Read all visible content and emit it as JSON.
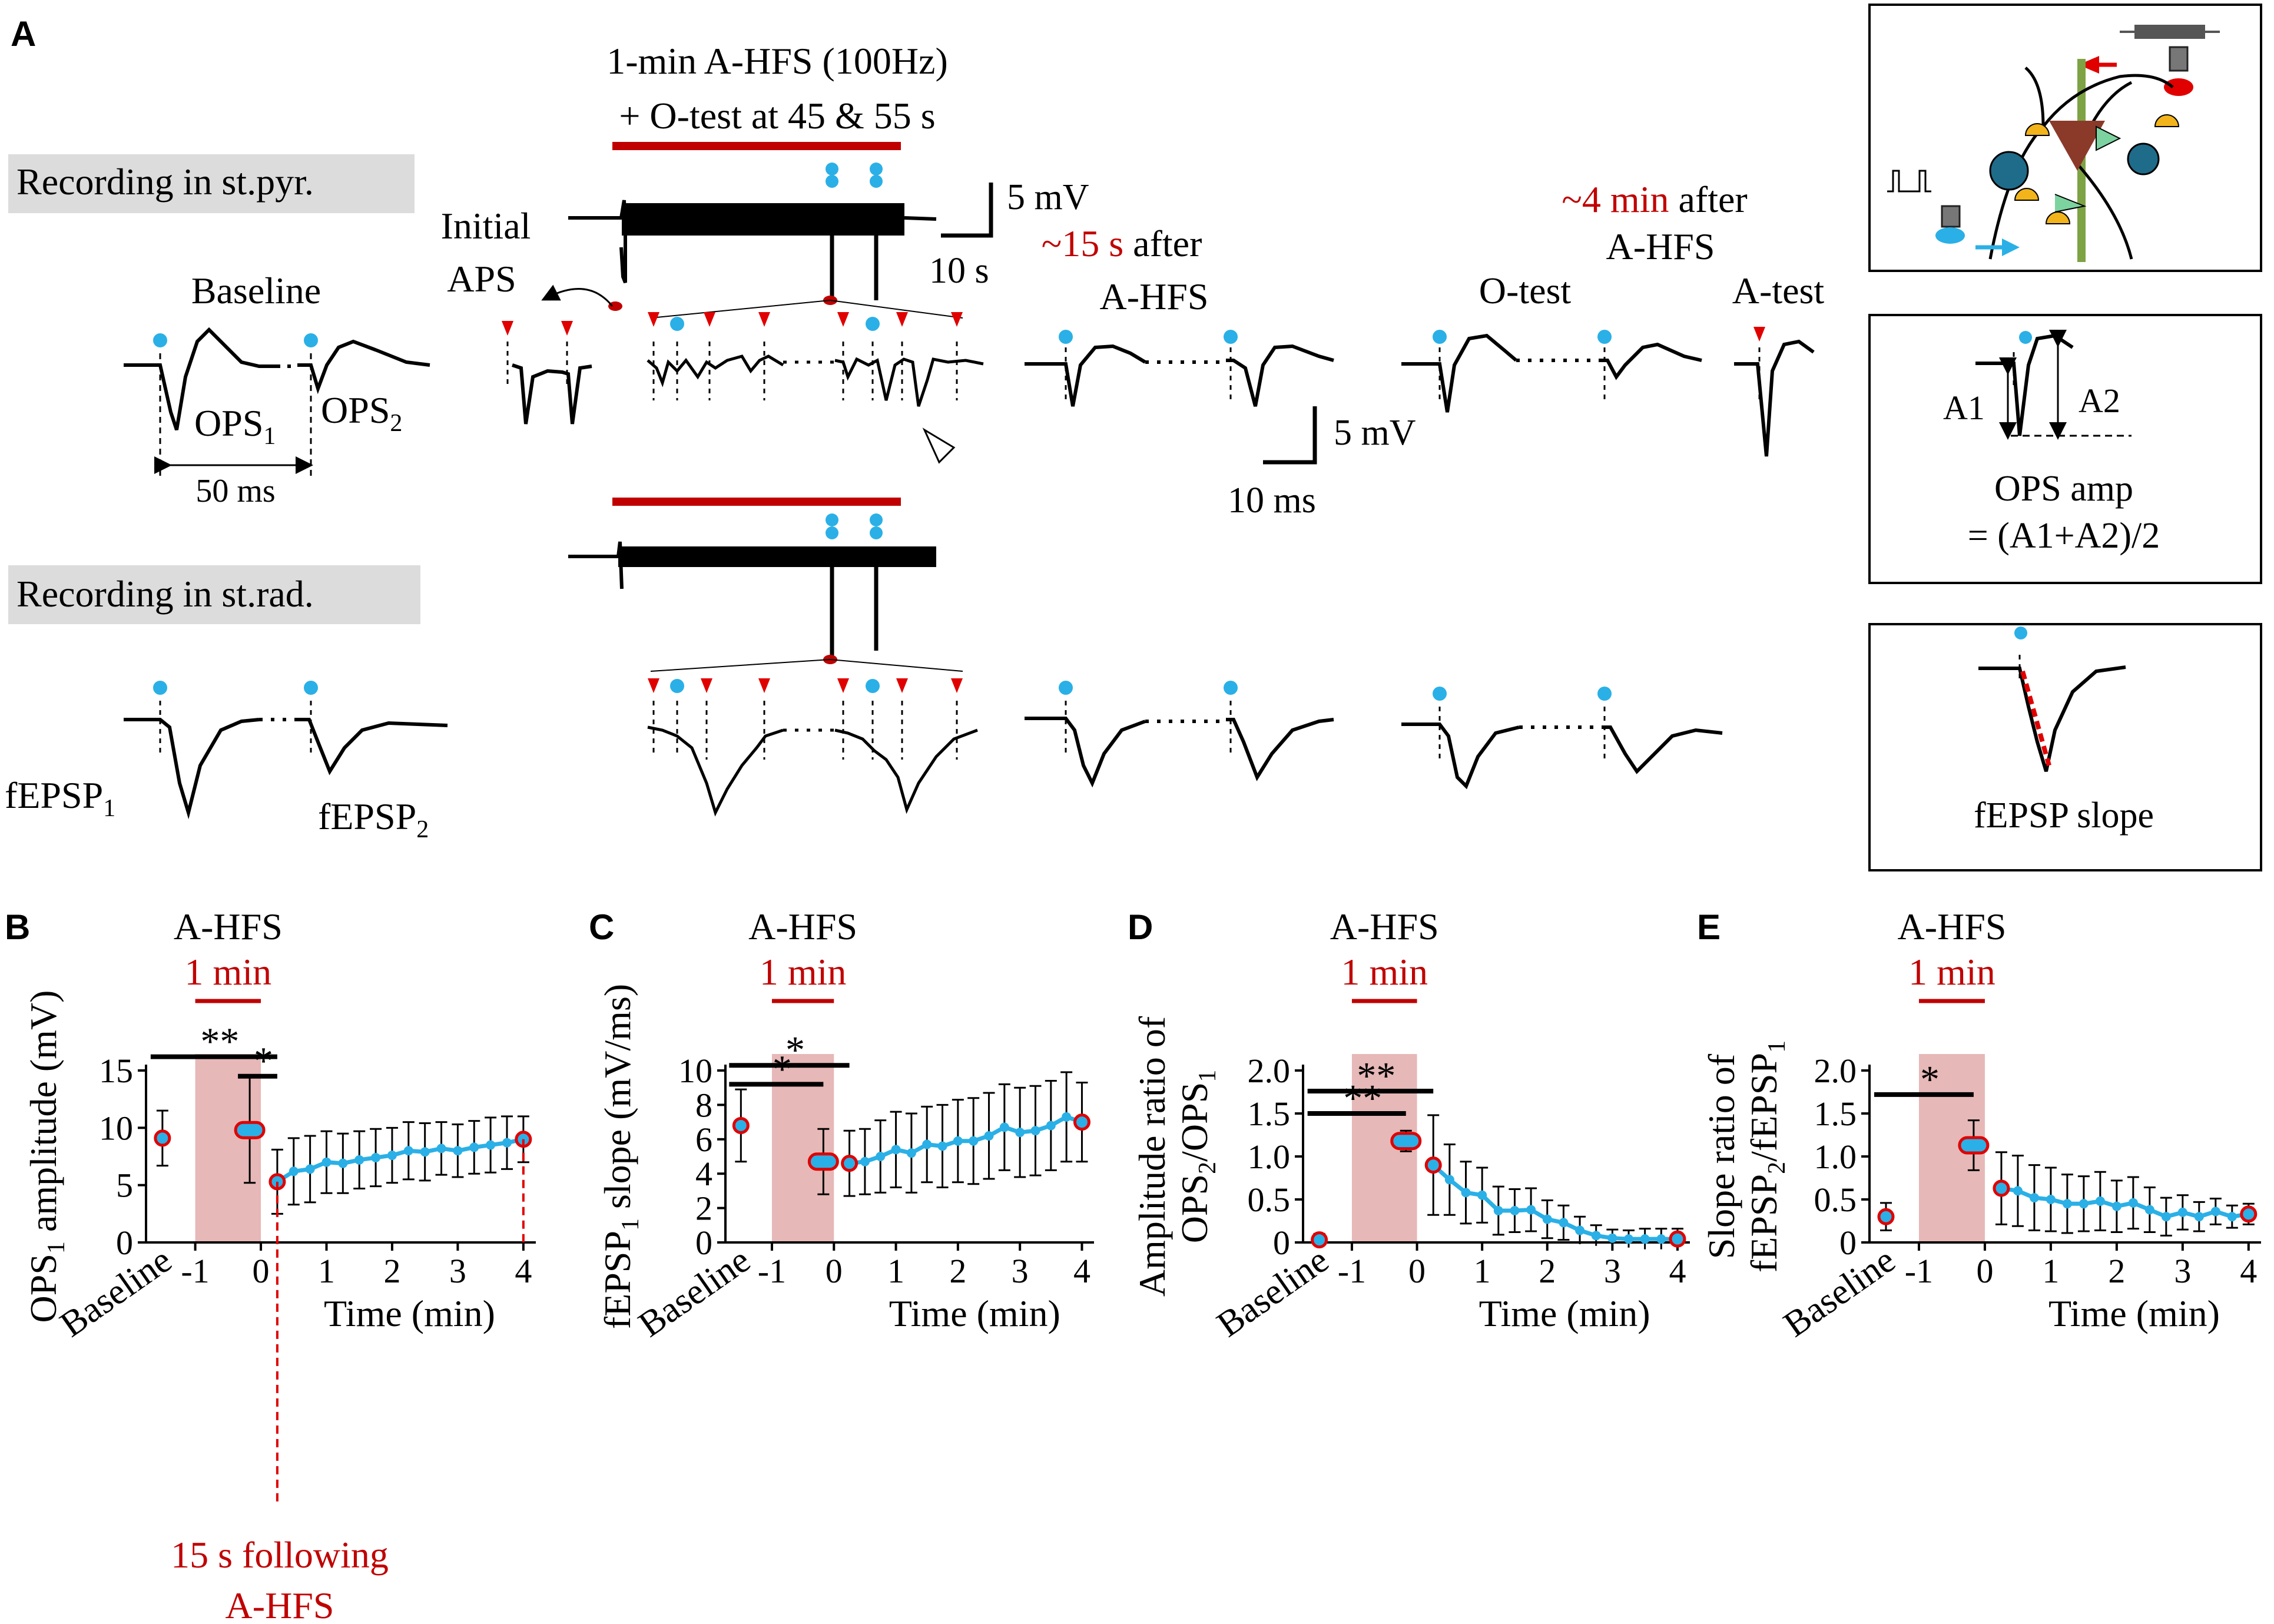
{
  "panel_labels": {
    "a": "A",
    "b": "B",
    "c": "C",
    "d": "D",
    "e": "E"
  },
  "panel_a": {
    "protocol_line1": "1-min A-HFS (100Hz)",
    "protocol_line2": "+ O-test at 45 & 55 s",
    "rec_pyr": "Recording in st.pyr.",
    "rec_rad": "Recording in st.rad.",
    "initial_aps": [
      "Initial",
      "APS"
    ],
    "baseline": "Baseline",
    "after15": {
      "red": "~15 s",
      "black": " after",
      "line2": "A-HFS"
    },
    "after4": {
      "red": "~4 min",
      "black": " after",
      "line2": "A-HFS"
    },
    "o_test": "O-test",
    "a_test": "A-test",
    "ops1_base": "OPS",
    "ops1_sub": "1",
    "ops2_base": "OPS",
    "ops2_sub": "2",
    "interval": "50 ms",
    "scale_slow_v": "5 mV",
    "scale_slow_t": "10 s",
    "scale_fast_v": "5 mV",
    "scale_fast_t": "10 ms",
    "fepsp1_base": "fEPSP",
    "fepsp1_sub": "1",
    "fepsp2_base": "fEPSP",
    "fepsp2_sub": "2"
  },
  "insets": {
    "ops_amp_line1": "OPS amp",
    "ops_amp_line2": "= (A1+A2)/2",
    "a1": "A1",
    "a2": "A2",
    "fepsp_slope": "fEPSP slope"
  },
  "colors": {
    "red": "#c00000",
    "marker_red": "#e00000",
    "blue": "#2ab0e6",
    "shade": "#e6b8b7",
    "black": "#000000"
  },
  "chart_data": [
    {
      "panel": "B",
      "type": "line",
      "title": "A-HFS",
      "subtitle": "1 min",
      "xlabel": "Time (min)",
      "ylabel": "OPS1 amplitude (mV)",
      "ylabel_parts": [
        "OPS",
        "1",
        " amplitude (mV)"
      ],
      "baseline_label": "Baseline",
      "xlim": [
        -1.75,
        4.1
      ],
      "ylim": [
        0,
        15
      ],
      "yticks": [
        0,
        5,
        10,
        15
      ],
      "ytick_labels": [
        "0",
        "5",
        "10",
        "15"
      ],
      "xticks": [
        -1,
        0,
        1,
        2,
        3,
        4
      ],
      "xtick_labels": [
        "-1",
        "0",
        "1",
        "2",
        "3",
        "4"
      ],
      "shade": [
        -1,
        0
      ],
      "baseline_point": {
        "x": -1.5,
        "y": 9.1,
        "err": 2.4
      },
      "hfs_point": {
        "x": -0.17,
        "y": 9.8,
        "err": 4.6
      },
      "series": [
        {
          "name": "after A-HFS",
          "x": [
            0.25,
            0.5,
            0.75,
            1.0,
            1.25,
            1.5,
            1.75,
            2.0,
            2.25,
            2.5,
            2.75,
            3.0,
            3.25,
            3.5,
            3.75,
            4.0
          ],
          "y": [
            5.3,
            6.2,
            6.4,
            7.0,
            6.9,
            7.2,
            7.4,
            7.6,
            8.0,
            7.9,
            8.2,
            8.0,
            8.3,
            8.5,
            8.7,
            9.0
          ],
          "err": [
            2.8,
            2.9,
            2.9,
            2.7,
            2.6,
            2.5,
            2.5,
            2.4,
            2.5,
            2.5,
            2.3,
            2.3,
            2.3,
            2.4,
            2.3,
            2.0
          ]
        }
      ],
      "sig_bars": [
        {
          "label": "**",
          "x1": -1.5,
          "x2": 0.25,
          "y": 16.2
        },
        {
          "label": "*",
          "x1": -0.17,
          "x2": 0.25,
          "y": 14.5
        }
      ],
      "annotation": {
        "line1": "15 s following",
        "line2": "A-HFS"
      }
    },
    {
      "panel": "C",
      "type": "line",
      "title": "A-HFS",
      "subtitle": "1 min",
      "xlabel": "Time (min)",
      "ylabel": "fEPSP1 slope (mV/ms)",
      "ylabel_parts": [
        "fEPSP",
        "1",
        " slope (mV/ms)"
      ],
      "baseline_label": "Baseline",
      "xlim": [
        -1.75,
        4.1
      ],
      "ylim": [
        0,
        10
      ],
      "yticks": [
        0,
        2,
        4,
        6,
        8,
        10
      ],
      "ytick_labels": [
        "0",
        "2",
        "4",
        "6",
        "8",
        "10"
      ],
      "xticks": [
        -1,
        0,
        1,
        2,
        3,
        4
      ],
      "xtick_labels": [
        "-1",
        "0",
        "1",
        "2",
        "3",
        "4"
      ],
      "shade": [
        -1,
        0
      ],
      "baseline_point": {
        "x": -1.5,
        "y": 6.8,
        "err": 2.1
      },
      "hfs_point": {
        "x": -0.17,
        "y": 4.7,
        "err": 1.9
      },
      "series": [
        {
          "name": "after A-HFS",
          "x": [
            0.25,
            0.5,
            0.75,
            1.0,
            1.25,
            1.5,
            1.75,
            2.0,
            2.25,
            2.5,
            2.75,
            3.0,
            3.25,
            3.5,
            3.75,
            4.0
          ],
          "y": [
            4.6,
            4.7,
            5.0,
            5.4,
            5.2,
            5.7,
            5.6,
            5.9,
            5.9,
            6.2,
            6.7,
            6.4,
            6.5,
            6.8,
            7.3,
            7.0
          ],
          "err": [
            1.9,
            1.9,
            2.1,
            2.2,
            2.3,
            2.2,
            2.4,
            2.4,
            2.5,
            2.5,
            2.5,
            2.6,
            2.6,
            2.6,
            2.6,
            2.3
          ]
        }
      ],
      "sig_bars": [
        {
          "label": "*",
          "x1": -1.5,
          "x2": 0.25,
          "y": 10.3
        },
        {
          "label": "*",
          "x1": -1.5,
          "x2": -0.17,
          "y": 9.2
        }
      ]
    },
    {
      "panel": "D",
      "type": "line",
      "title": "A-HFS",
      "subtitle": "1 min",
      "xlabel": "Time (min)",
      "ylabel": "Amplitude ratio of OPS2/OPS1",
      "ylabel_line1": "Amplitude ratio of",
      "ylabel_parts": [
        "OPS",
        "2",
        "/OPS",
        "1"
      ],
      "baseline_label": "Baseline",
      "xlim": [
        -1.75,
        4.1
      ],
      "ylim": [
        0,
        2.0
      ],
      "yticks": [
        0,
        0.5,
        1.0,
        1.5,
        2.0
      ],
      "ytick_labels": [
        "0",
        "0.5",
        "1.0",
        "1.5",
        "2.0"
      ],
      "xticks": [
        -1,
        0,
        1,
        2,
        3,
        4
      ],
      "xtick_labels": [
        "-1",
        "0",
        "1",
        "2",
        "3",
        "4"
      ],
      "shade": [
        -1,
        0
      ],
      "baseline_point": {
        "x": -1.5,
        "y": 0.03,
        "err": 0.07
      },
      "hfs_point": {
        "x": -0.17,
        "y": 1.18,
        "err": 0.12
      },
      "series": [
        {
          "name": "after A-HFS",
          "x": [
            0.25,
            0.5,
            0.75,
            1.0,
            1.25,
            1.5,
            1.75,
            2.0,
            2.25,
            2.5,
            2.75,
            3.0,
            3.25,
            3.5,
            3.75,
            4.0
          ],
          "y": [
            0.9,
            0.73,
            0.58,
            0.55,
            0.37,
            0.37,
            0.38,
            0.27,
            0.23,
            0.14,
            0.08,
            0.05,
            0.04,
            0.04,
            0.04,
            0.04
          ],
          "err": [
            0.58,
            0.41,
            0.36,
            0.32,
            0.28,
            0.25,
            0.25,
            0.22,
            0.2,
            0.16,
            0.12,
            0.1,
            0.1,
            0.12,
            0.12,
            0.12
          ]
        }
      ],
      "sig_bars": [
        {
          "label": "**",
          "x1": -1.5,
          "x2": 0.25,
          "y": 1.76
        },
        {
          "label": "**",
          "x1": -1.5,
          "x2": -0.17,
          "y": 1.5
        }
      ]
    },
    {
      "panel": "E",
      "type": "line",
      "title": "A-HFS",
      "subtitle": "1 min",
      "xlabel": "Time (min)",
      "ylabel": "Slope ratio of fEPSP2/fEPSP1",
      "ylabel_line1": "Slope ratio of",
      "ylabel_parts": [
        "fEPSP",
        "2",
        "/fEPSP",
        "1"
      ],
      "baseline_label": "Baseline",
      "xlim": [
        -1.75,
        4.1
      ],
      "ylim": [
        0,
        2.0
      ],
      "yticks": [
        0,
        0.5,
        1.0,
        1.5,
        2.0
      ],
      "ytick_labels": [
        "0",
        "0.5",
        "1.0",
        "1.5",
        "2.0"
      ],
      "xticks": [
        -1,
        0,
        1,
        2,
        3,
        4
      ],
      "xtick_labels": [
        "-1",
        "0",
        "1",
        "2",
        "3",
        "4"
      ],
      "shade": [
        -1,
        0
      ],
      "baseline_point": {
        "x": -1.5,
        "y": 0.3,
        "err": 0.16
      },
      "hfs_point": {
        "x": -0.17,
        "y": 1.13,
        "err": 0.29
      },
      "series": [
        {
          "name": "after A-HFS",
          "x": [
            0.25,
            0.5,
            0.75,
            1.0,
            1.25,
            1.5,
            1.75,
            2.0,
            2.25,
            2.5,
            2.75,
            3.0,
            3.25,
            3.5,
            3.75,
            4.0
          ],
          "y": [
            0.63,
            0.6,
            0.52,
            0.5,
            0.45,
            0.45,
            0.48,
            0.42,
            0.46,
            0.38,
            0.3,
            0.35,
            0.3,
            0.36,
            0.3,
            0.33
          ],
          "err": [
            0.42,
            0.41,
            0.38,
            0.37,
            0.34,
            0.32,
            0.34,
            0.3,
            0.3,
            0.26,
            0.22,
            0.2,
            0.17,
            0.15,
            0.13,
            0.12
          ]
        }
      ],
      "sig_bars": [
        {
          "label": "*",
          "x1": -1.5,
          "x2": -0.17,
          "y": 1.72
        }
      ]
    }
  ]
}
